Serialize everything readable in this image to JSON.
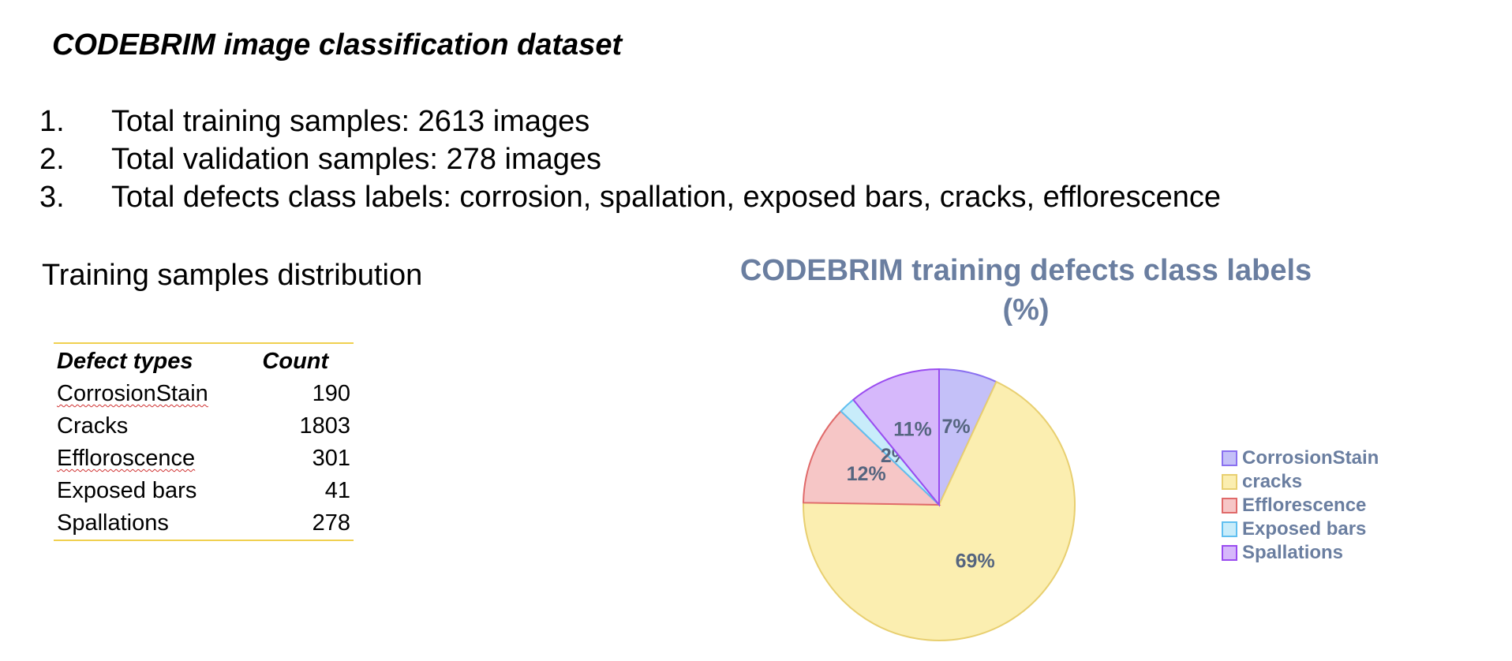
{
  "doc": {
    "title": "CODEBRIM image classification dataset",
    "items": [
      {
        "num": "1.",
        "text": "Total training samples: 2613 images"
      },
      {
        "num": "2.",
        "text": "Total validation samples: 278 images"
      },
      {
        "num": "3.",
        "text": "Total defects class labels: corrosion, spallation, exposed bars, cracks, efflorescence"
      }
    ],
    "subtitle": "Training samples distribution"
  },
  "table": {
    "headers": [
      "Defect types",
      "Count"
    ],
    "rows": [
      {
        "type": "CorrosionStain",
        "count": "190"
      },
      {
        "type": "Cracks",
        "count": "1803"
      },
      {
        "type": "Effloroscence",
        "count": "301"
      },
      {
        "type": "Exposed bars",
        "count": "41"
      },
      {
        "type": "Spallations",
        "count": "278"
      }
    ]
  },
  "chart_data": {
    "type": "pie",
    "title": "CODEBRIM training defects class labels (%)",
    "title_lines": [
      "CODEBRIM training defects class labels",
      "(%)"
    ],
    "categories": [
      "CorrosionStain",
      "cracks",
      "Efflorescence",
      "Exposed bars",
      "Spallations"
    ],
    "values": [
      7,
      69,
      12,
      2,
      11
    ],
    "value_labels": [
      "7%",
      "69%",
      "12%",
      "2%",
      "11%"
    ],
    "colors": {
      "fill": [
        "#c4c0f8",
        "#fbeeb0",
        "#f6c6c6",
        "#c8ecfa",
        "#d6b8fb"
      ],
      "stroke": [
        "#8a70f0",
        "#e8cf70",
        "#e06a6a",
        "#60bff0",
        "#9a4cf0"
      ],
      "text": "#55657f",
      "leader": "#7f8ea8"
    },
    "legend_position": "right"
  }
}
